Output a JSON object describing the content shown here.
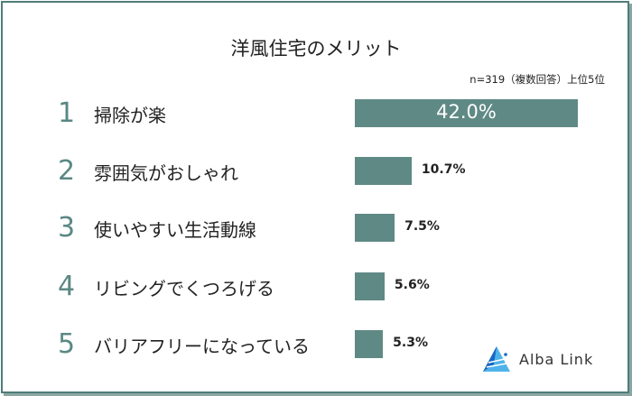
{
  "chart_data": {
    "type": "bar",
    "orientation": "horizontal",
    "title": "洋風住宅のメリット",
    "note": "n=319（複数回答）上位5位",
    "ranks": [
      "1",
      "2",
      "3",
      "4",
      "5"
    ],
    "categories": [
      "掃除が楽",
      "雰囲気がおしゃれ",
      "使いやすい生活動線",
      "リビングでくつろげる",
      "バリアフリーになっている"
    ],
    "values": [
      42.0,
      10.7,
      7.5,
      5.6,
      5.3
    ],
    "value_labels": [
      "42.0%",
      "10.7%",
      "7.5%",
      "5.6%",
      "5.3%"
    ],
    "xlim": [
      0,
      42
    ],
    "grid": false,
    "bar_color": "#5f8985"
  },
  "logo": {
    "text": "Alba Link",
    "color": "#1a8fd8"
  }
}
